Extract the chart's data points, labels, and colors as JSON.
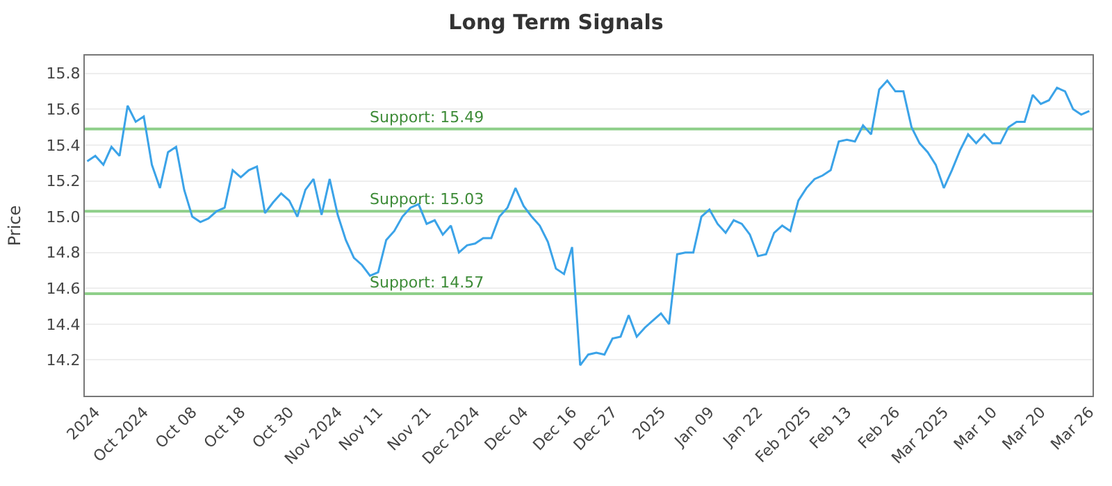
{
  "chart_data": {
    "type": "line",
    "title": "Long Term Signals",
    "ylabel": "Price",
    "categories": [
      null,
      "2024",
      null,
      null,
      null,
      null,
      null,
      "Oct 2024",
      null,
      null,
      null,
      null,
      null,
      "Oct 08",
      null,
      null,
      null,
      null,
      null,
      "Oct 18",
      null,
      null,
      null,
      null,
      null,
      "Oct 30",
      null,
      null,
      null,
      null,
      null,
      "Nov 2024",
      null,
      null,
      null,
      null,
      "Nov 11",
      null,
      null,
      null,
      null,
      null,
      "Nov 21",
      null,
      null,
      null,
      null,
      null,
      "Dec 2024",
      null,
      null,
      null,
      null,
      null,
      "Dec 04",
      null,
      null,
      null,
      null,
      null,
      "Dec 16",
      null,
      null,
      null,
      null,
      "Dec 27",
      null,
      null,
      null,
      null,
      null,
      "2025",
      null,
      null,
      null,
      null,
      null,
      "Jan 09",
      null,
      null,
      null,
      null,
      null,
      "Jan 22",
      null,
      null,
      null,
      null,
      null,
      "Feb 2025",
      null,
      null,
      null,
      null,
      "Feb 13",
      null,
      null,
      null,
      null,
      null,
      "Feb 26",
      null,
      null,
      null,
      null,
      null,
      "Mar 2025",
      null,
      null,
      null,
      null,
      null,
      "Mar 10",
      null,
      null,
      null,
      null,
      null,
      "Mar 20",
      null,
      null,
      null,
      null,
      null,
      "Mar 26"
    ],
    "series": [
      {
        "color": "#3ba3e8",
        "values": [
          15.31,
          15.34,
          15.29,
          15.39,
          15.34,
          15.62,
          15.53,
          15.56,
          15.29,
          15.16,
          15.36,
          15.39,
          15.15,
          15.0,
          14.97,
          14.99,
          15.03,
          15.05,
          15.26,
          15.22,
          15.26,
          15.28,
          15.02,
          15.08,
          15.13,
          15.09,
          15.0,
          15.15,
          15.21,
          15.01,
          15.21,
          15.01,
          14.87,
          14.77,
          14.73,
          14.67,
          14.69,
          14.87,
          14.92,
          15.0,
          15.05,
          15.07,
          14.96,
          14.98,
          14.9,
          14.95,
          14.8,
          14.84,
          14.85,
          14.88,
          14.88,
          15.0,
          15.05,
          15.16,
          15.06,
          15.0,
          14.95,
          14.86,
          14.71,
          14.68,
          14.83,
          14.17,
          14.23,
          14.24,
          14.23,
          14.32,
          14.33,
          14.45,
          14.33,
          14.38,
          14.42,
          14.46,
          14.4,
          14.79,
          14.8,
          14.8,
          15.0,
          15.04,
          14.96,
          14.91,
          14.98,
          14.96,
          14.9,
          14.78,
          14.79,
          14.91,
          14.95,
          14.92,
          15.09,
          15.16,
          15.21,
          15.23,
          15.26,
          15.42,
          15.43,
          15.42,
          15.51,
          15.46,
          15.71,
          15.76,
          15.7,
          15.7,
          15.5,
          15.41,
          15.36,
          15.29,
          15.16,
          15.26,
          15.37,
          15.46,
          15.41,
          15.46,
          15.41,
          15.41,
          15.5,
          15.53,
          15.53,
          15.68,
          15.63,
          15.65,
          15.72,
          15.7,
          15.6,
          15.57,
          15.59
        ]
      }
    ],
    "ylim": [
      14.0,
      15.9
    ],
    "yticks": [
      14.2,
      14.4,
      14.6,
      14.8,
      {
        "value": 15.0,
        "label": "15.0"
      },
      15.2,
      15.4,
      15.6,
      15.8
    ],
    "grid": "y",
    "marker": "none",
    "line_style": "solid",
    "ref_lines": [
      {
        "axis": "y",
        "value": 15.49,
        "label": "Support: 15.49",
        "color": "#8fcf8a"
      },
      {
        "axis": "y",
        "value": 15.03,
        "label": "Support: 15.03",
        "color": "#8fcf8a"
      },
      {
        "axis": "y",
        "value": 14.57,
        "label": "Support: 14.57",
        "color": "#8fcf8a"
      }
    ]
  }
}
